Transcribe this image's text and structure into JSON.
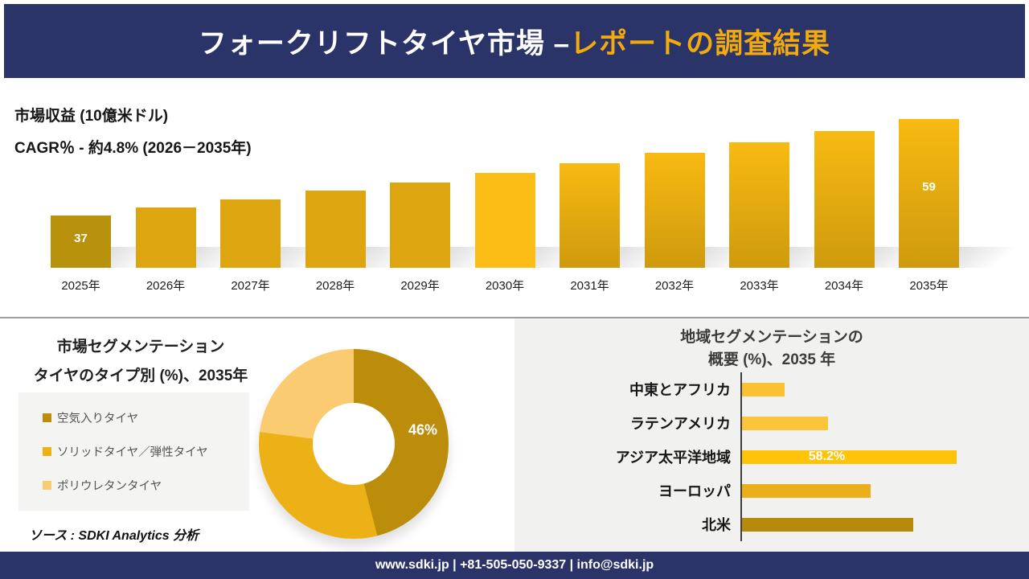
{
  "header": {
    "title_white": "フォークリフトタイヤ市場 –",
    "title_gold": "レポートの調査結果"
  },
  "revenue_section": {
    "metric_label": "市場収益 (10億米ドル)",
    "cagr_label": "CAGR％ - 約4.8% (2026－2035年)"
  },
  "left_panel": {
    "title_line1": "市場セグメンテーション",
    "title_line2": "タイヤのタイプ別 (%)、2035年",
    "source_note": "ソース : SDKI Analytics 分析"
  },
  "right_panel": {
    "title_line1": "地域セグメンテーションの",
    "title_line2": "概要 (%)、2035 年"
  },
  "footer": {
    "contact_line": "www.sdki.jp | +81-505-050-9337 | info@sdki.jp"
  },
  "palette": {
    "navy": "#2A3468",
    "header_gold": "#F2AA0D",
    "bar_dark_2025": "#B9920D",
    "bar_mid": "#DDA50F",
    "bar_bright_2030": "#FBBD16",
    "bar_grad_top": "#F8BA12",
    "bar_grad_bottom": "#CE9A0E",
    "panel_gray": "#F1F1EF",
    "legend_gray": "#F4F4F3"
  },
  "chart_data": [
    {
      "type": "bar",
      "title": "市場収益 (10億米ドル)",
      "subtitle": "CAGR％ - 約4.8% (2026－2035年)",
      "categories": [
        "2025年",
        "2026年",
        "2027年",
        "2028年",
        "2029年",
        "2030年",
        "2031年",
        "2032年",
        "2033年",
        "2034年",
        "2035年"
      ],
      "values": [
        37,
        38.8,
        40.6,
        42.6,
        44.6,
        46.8,
        49.0,
        51.3,
        53.8,
        56.4,
        59
      ],
      "data_labels": {
        "2025年": "37",
        "2035年": "59"
      },
      "ylim": [
        25,
        60
      ],
      "grid": false,
      "bar_fills": [
        "dark",
        "mid",
        "mid",
        "mid",
        "mid",
        "bright",
        "grad",
        "grad",
        "grad",
        "grad",
        "grad"
      ]
    },
    {
      "type": "pie",
      "donut": true,
      "title": "市場セグメンテーション タイヤのタイプ別 (%)、2035年",
      "labels": [
        "空気入りタイヤ",
        "ソリッドタイヤ／弾性タイヤ",
        "ポリウレタンタイヤ"
      ],
      "values": [
        46,
        31,
        23
      ],
      "colors": [
        "#BC8D0B",
        "#EDB118",
        "#FACB70"
      ],
      "shown_label": "46%",
      "legend_position": "left"
    },
    {
      "type": "bar",
      "orientation": "horizontal",
      "title": "地域セグメンテーションの概要 (%)、2035 年",
      "categories": [
        "中東とアフリカ",
        "ラテンアメリカ",
        "アジア太平洋地域",
        "ヨーロッパ",
        "北米"
      ],
      "values": [
        11.6,
        23.3,
        58.2,
        34.9,
        46.4
      ],
      "colors": [
        "#FAC233",
        "#FBC43A",
        "#FFC30A",
        "#EAAF1B",
        "#B7890D"
      ],
      "shown_label": {
        "category": "アジア太平洋地域",
        "text": "58.2%"
      },
      "xlim": [
        0,
        60
      ],
      "grid": false
    }
  ]
}
